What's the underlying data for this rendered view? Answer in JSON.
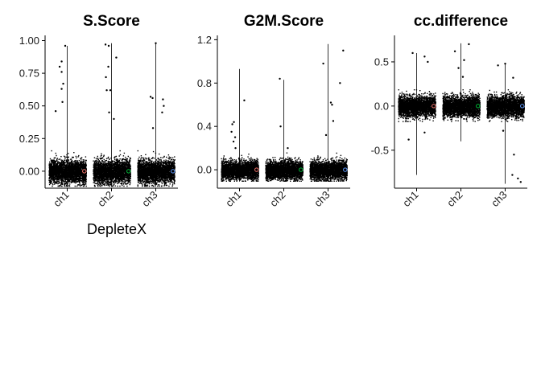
{
  "figure": {
    "xlabel": "DepleteX"
  },
  "chart_data": [
    {
      "type": "scatter",
      "subtype": "violin-jitter",
      "title": "S.Score",
      "categories": [
        "ch1",
        "ch2",
        "ch3"
      ],
      "ylim": [
        -0.13,
        1.04
      ],
      "yticks": [
        0.0,
        0.25,
        0.5,
        0.75,
        1.0
      ],
      "yticklabels": [
        "0.00",
        "0.25",
        "0.50",
        "0.75",
        "1.00"
      ],
      "xlabel": "DepleteX",
      "grid": false,
      "bulk": {
        "center": 0.0,
        "low": -0.11,
        "high": 0.16
      },
      "whiskers": [
        [
          -0.12,
          0.96
        ],
        [
          -0.12,
          0.98
        ],
        [
          -0.12,
          0.98
        ]
      ],
      "outliers": [
        [
          [
            0.86,
            0.84
          ],
          [
            0.71,
            0.46
          ],
          [
            0.81,
            0.8
          ],
          [
            0.86,
            0.76
          ],
          [
            0.86,
            0.63
          ],
          [
            0.9,
            0.67
          ],
          [
            0.88,
            0.53
          ],
          [
            0.95,
            0.96
          ]
        ],
        [
          [
            0.85,
            0.97
          ],
          [
            0.86,
            0.72
          ],
          [
            0.92,
            0.8
          ],
          [
            0.94,
            0.45
          ],
          [
            0.93,
            0.96
          ],
          [
            0.97,
            0.62
          ],
          [
            1.06,
            0.4
          ],
          [
            1.12,
            0.87
          ],
          [
            0.88,
            0.62
          ]
        ],
        [
          [
            0.87,
            0.57
          ],
          [
            0.92,
            0.56
          ],
          [
            1.0,
            0.98
          ],
          [
            1.16,
            0.45
          ],
          [
            1.18,
            0.55
          ],
          [
            1.2,
            0.5
          ],
          [
            0.93,
            0.33
          ]
        ]
      ],
      "series_colors": [
        "#F8766D",
        "#00BA38",
        "#619CFF"
      ]
    },
    {
      "type": "scatter",
      "subtype": "violin-jitter",
      "title": "G2M.Score",
      "categories": [
        "ch1",
        "ch2",
        "ch3"
      ],
      "ylim": [
        -0.17,
        1.24
      ],
      "yticks": [
        0.0,
        0.4,
        0.8,
        1.2
      ],
      "yticklabels": [
        "0.0",
        "0.4",
        "0.8",
        "1.2"
      ],
      "grid": false,
      "bulk": {
        "center": 0.0,
        "low": -0.1,
        "high": 0.16
      },
      "whiskers": [
        [
          -0.11,
          0.93
        ],
        [
          -0.11,
          0.83
        ],
        [
          -0.11,
          1.16
        ]
      ],
      "outliers": [
        [
          [
            0.82,
            0.42
          ],
          [
            0.8,
            0.35
          ],
          [
            0.86,
            0.44
          ],
          [
            0.85,
            0.26
          ],
          [
            0.89,
            0.3
          ],
          [
            1.12,
            0.64
          ],
          [
            0.9,
            0.2
          ]
        ],
        [
          [
            0.92,
            0.4
          ],
          [
            0.9,
            0.84
          ],
          [
            1.1,
            0.2
          ]
        ],
        [
          [
            0.88,
            0.98
          ],
          [
            1.07,
            0.62
          ],
          [
            1.1,
            0.6
          ],
          [
            1.13,
            0.45
          ],
          [
            1.3,
            0.8
          ],
          [
            1.38,
            1.1
          ],
          [
            0.95,
            0.32
          ]
        ]
      ],
      "series_colors": [
        "#F8766D",
        "#00BA38",
        "#619CFF"
      ]
    },
    {
      "type": "scatter",
      "subtype": "violin-jitter",
      "title": "cc.difference",
      "categories": [
        "ch1",
        "ch2",
        "ch3"
      ],
      "ylim": [
        -0.93,
        0.8
      ],
      "yticks": [
        -0.5,
        0.0,
        0.5
      ],
      "yticklabels": [
        "-0.5",
        "0.0",
        "0.5"
      ],
      "grid": false,
      "bulk": {
        "center": 0.0,
        "low": -0.17,
        "high": 0.19
      },
      "whiskers": [
        [
          -0.78,
          0.6
        ],
        [
          -0.4,
          0.71
        ],
        [
          -0.88,
          0.48
        ]
      ],
      "outliers": [
        [
          [
            0.9,
            0.6
          ],
          [
            1.2,
            0.56
          ],
          [
            1.28,
            0.5
          ],
          [
            0.8,
            -0.38
          ],
          [
            1.2,
            -0.3
          ]
        ],
        [
          [
            0.85,
            0.62
          ],
          [
            0.94,
            0.43
          ],
          [
            1.08,
            0.52
          ],
          [
            1.2,
            0.7
          ],
          [
            1.05,
            0.33
          ]
        ],
        [
          [
            0.82,
            0.46
          ],
          [
            1.0,
            0.48
          ],
          [
            1.2,
            0.32
          ],
          [
            1.22,
            -0.55
          ],
          [
            1.32,
            -0.82
          ],
          [
            1.39,
            -0.86
          ],
          [
            0.95,
            -0.28
          ],
          [
            1.18,
            -0.78
          ]
        ]
      ],
      "series_colors": [
        "#F8766D",
        "#00BA38",
        "#619CFF"
      ]
    }
  ]
}
